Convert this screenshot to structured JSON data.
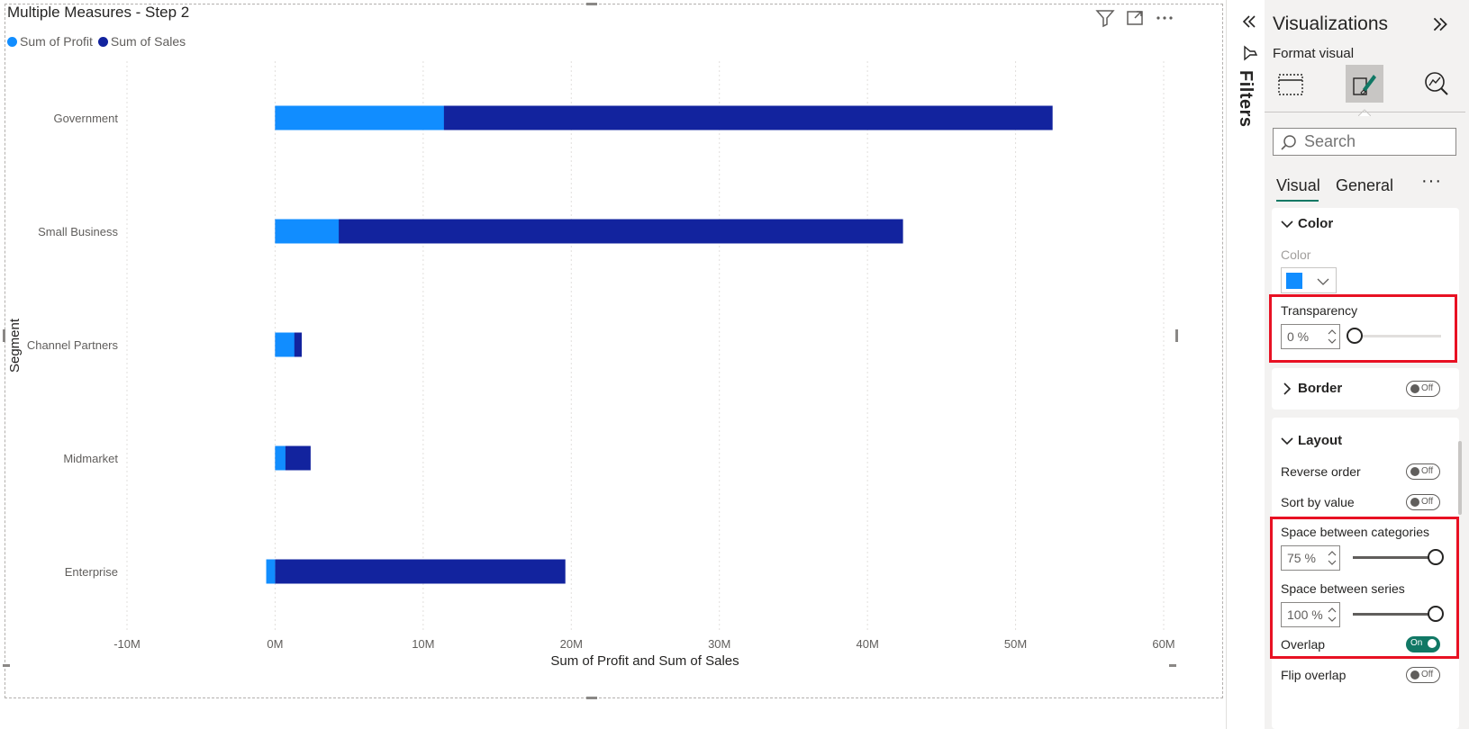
{
  "visual": {
    "title": "Multiple Measures - Step 2",
    "legend": [
      {
        "label": "Sum of Profit",
        "color": "#118dff"
      },
      {
        "label": "Sum of Sales",
        "color": "#12239e"
      }
    ],
    "header_icons": [
      "filter-icon",
      "focus-mode-icon",
      "more-options-icon"
    ]
  },
  "chart_data": {
    "type": "bar",
    "orientation": "horizontal",
    "title": "Multiple Measures - Step 2",
    "ylabel": "Segment",
    "xlabel": "Sum of Profit and Sum of Sales",
    "categories": [
      "Government",
      "Small Business",
      "Channel Partners",
      "Midmarket",
      "Enterprise"
    ],
    "series": [
      {
        "name": "Sum of Sales",
        "color": "#12239e",
        "values": [
          52.5,
          42.4,
          1.8,
          2.4,
          19.6
        ]
      },
      {
        "name": "Sum of Profit",
        "color": "#118dff",
        "values": [
          11.4,
          4.3,
          1.3,
          0.7,
          -0.6
        ]
      }
    ],
    "overlap": true,
    "xlim": [
      -10,
      60
    ],
    "x_ticks": [
      -10,
      0,
      10,
      20,
      30,
      40,
      50,
      60
    ],
    "x_tick_labels": [
      "-10M",
      "0M",
      "10M",
      "20M",
      "30M",
      "40M",
      "50M",
      "60M"
    ],
    "units": "M",
    "grid": true,
    "legend_position": "top-left"
  },
  "filters": {
    "label": "Filters"
  },
  "pane": {
    "title": "Visualizations",
    "subtitle": "Format visual",
    "tools": [
      "build-visual-icon",
      "format-visual-icon",
      "analytics-icon"
    ],
    "search_placeholder": "Search",
    "tabs": {
      "visual": "Visual",
      "general": "General",
      "more": "···"
    },
    "color_section": {
      "header": "Color",
      "color_label": "Color",
      "swatch": "#118dff",
      "transparency_label": "Transparency",
      "transparency_value": "0 %",
      "transparency_level": 0
    },
    "border_section": {
      "header": "Border",
      "toggle": "Off"
    },
    "layout_section": {
      "header": "Layout",
      "reverse_order": {
        "label": "Reverse order",
        "toggle": "Off"
      },
      "sort_by_value": {
        "label": "Sort by value",
        "toggle": "Off"
      },
      "space_categories": {
        "label": "Space between categories",
        "value": "75 %",
        "level": 1
      },
      "space_series": {
        "label": "Space between series",
        "value": "100 %",
        "level": 1
      },
      "overlap": {
        "label": "Overlap",
        "toggle": "On"
      },
      "flip_overlap": {
        "label": "Flip overlap",
        "toggle": "Off"
      }
    },
    "accent": "#117865",
    "highlight": "#e81123"
  }
}
